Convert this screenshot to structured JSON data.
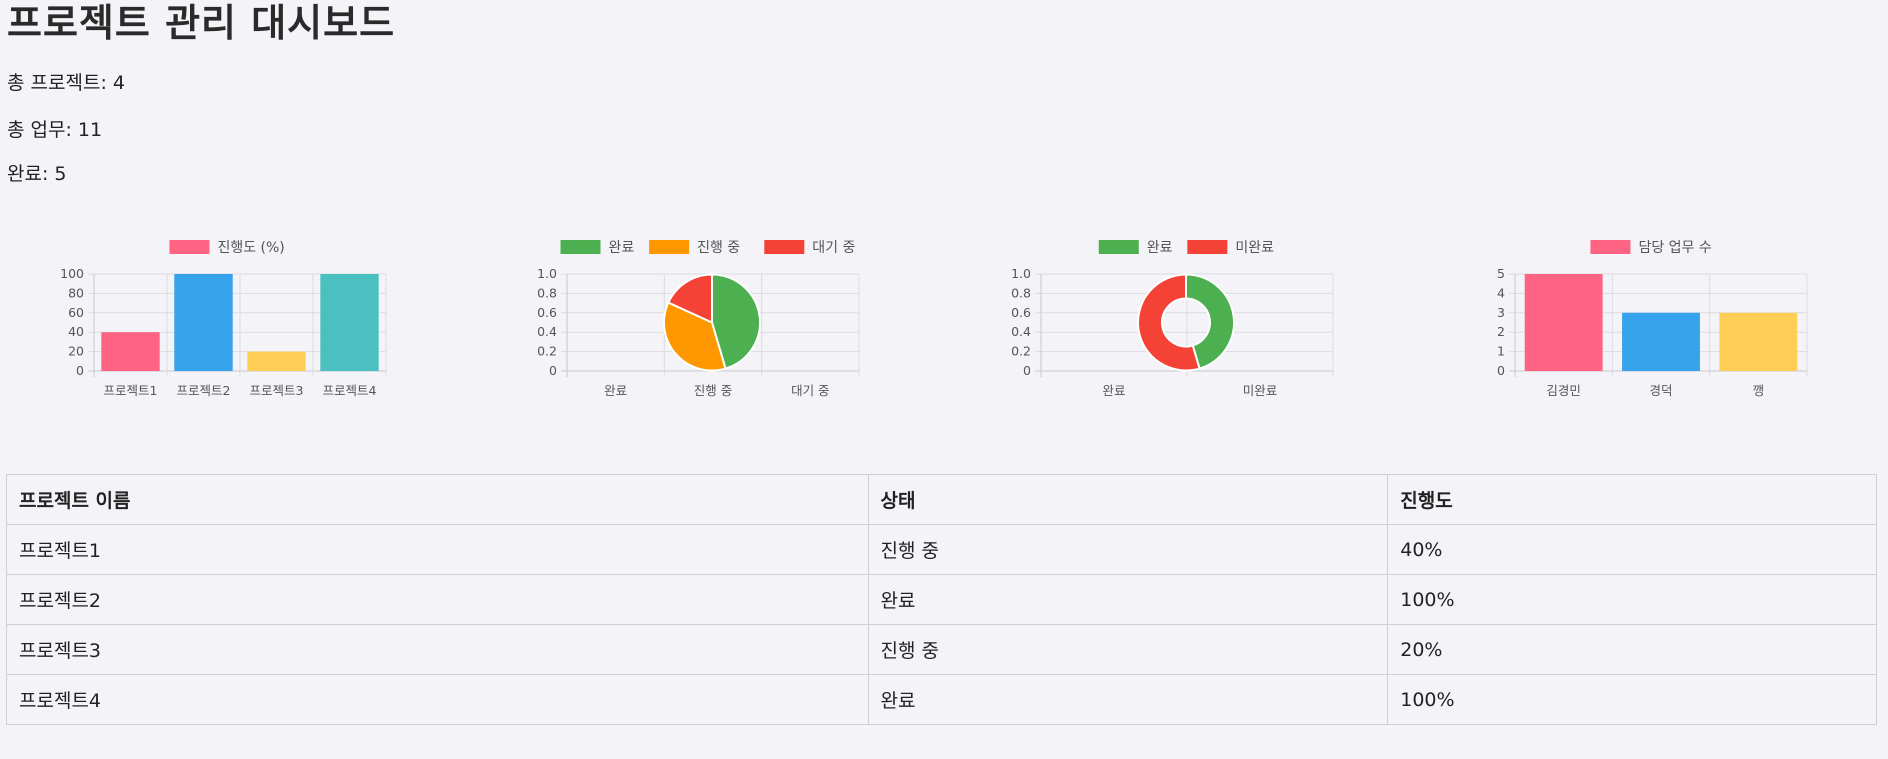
{
  "page": {
    "title": "프로젝트 관리 대시보드",
    "stats": [
      {
        "label": "총 프로젝트",
        "value": "4",
        "text": "총 프로젝트: 4"
      },
      {
        "label": "총 업무",
        "value": "11",
        "text": "총 업무: 11"
      },
      {
        "label": "완료",
        "value": "5",
        "text": "완료: 5"
      }
    ]
  },
  "chart_data": [
    {
      "type": "bar",
      "categories": [
        "프로젝트1",
        "프로젝트2",
        "프로젝트3",
        "프로젝트4"
      ],
      "series": [
        {
          "name": "진행도 (%)",
          "values": [
            40,
            100,
            20,
            100
          ]
        }
      ],
      "bar_colors": [
        "#ff6384",
        "#36a2eb",
        "#ffce56",
        "#4bc0c0"
      ],
      "legend_color": "#ff6384",
      "yticks": [
        "0",
        "20",
        "40",
        "60",
        "80",
        "100"
      ],
      "ylim": [
        0,
        100
      ],
      "grid": true,
      "legend_position": "top"
    },
    {
      "type": "pie",
      "categories": [
        "완료",
        "진행 중",
        "대기 중"
      ],
      "values": [
        5,
        4,
        2
      ],
      "colors": [
        "#4caf50",
        "#ff9800",
        "#f44336"
      ],
      "yticks": [
        "0",
        "0.2",
        "0.4",
        "0.6",
        "0.8",
        "1.0"
      ],
      "grid": true,
      "legend_position": "top"
    },
    {
      "type": "pie",
      "variant": "doughnut",
      "categories": [
        "완료",
        "미완료"
      ],
      "values": [
        5,
        6
      ],
      "colors": [
        "#4caf50",
        "#f44336"
      ],
      "yticks": [
        "0",
        "0.2",
        "0.4",
        "0.6",
        "0.8",
        "1.0"
      ],
      "grid": true,
      "legend_position": "top"
    },
    {
      "type": "bar",
      "categories": [
        "김경민",
        "경덕",
        "깽"
      ],
      "series": [
        {
          "name": "담당 업무 수",
          "values": [
            5,
            3,
            3
          ]
        }
      ],
      "bar_colors": [
        "#ff6384",
        "#36a2eb",
        "#ffce56"
      ],
      "legend_color": "#ff6384",
      "yticks": [
        "0",
        "1",
        "2",
        "3",
        "4",
        "5"
      ],
      "ylim": [
        0,
        5
      ],
      "grid": true,
      "legend_position": "top"
    }
  ],
  "table": {
    "headers": [
      "프로젝트 이름",
      "상태",
      "진행도"
    ],
    "rows": [
      [
        "프로젝트1",
        "진행 중",
        "40%"
      ],
      [
        "프로젝트2",
        "완료",
        "100%"
      ],
      [
        "프로젝트3",
        "진행 중",
        "20%"
      ],
      [
        "프로젝트4",
        "완료",
        "100%"
      ]
    ]
  }
}
